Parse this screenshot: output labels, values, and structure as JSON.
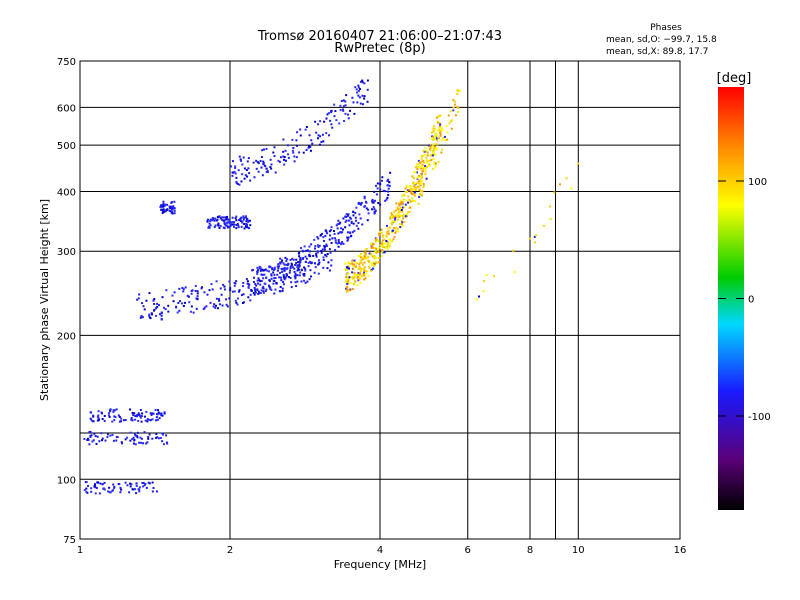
{
  "chart_data": {
    "type": "scatter",
    "title": "Tromsø 20160407 21:06:00–21:07:43",
    "subtitle": "RwPretec (8p)",
    "xlabel": "Frequency [MHz]",
    "ylabel": "Stationary phase Virtual Height [km]",
    "x_scale": "log",
    "y_scale": "log",
    "xlim": [
      1,
      16
    ],
    "ylim": [
      75,
      750
    ],
    "x_ticks": [
      1,
      2,
      4,
      6,
      8,
      10,
      16
    ],
    "x_minor_ticks": [
      9
    ],
    "y_ticks": [
      75,
      100,
      200,
      300,
      400,
      500,
      600,
      750
    ],
    "y_minor_ticks": [
      125
    ],
    "grid": true,
    "stats": {
      "title": "Phases",
      "line_o": "mean, sd,O: −99.7, 15.8",
      "line_x": "mean, sd,X:  89.8, 17.7"
    },
    "colorbar": {
      "label": "[deg]",
      "range": [
        -180,
        180
      ],
      "ticks": [
        -100,
        0,
        100
      ]
    },
    "series": [
      {
        "x_range": [
          1.02,
          1.5
        ],
        "y": 122,
        "phase": -100,
        "count": 70
      },
      {
        "x_range": [
          1.05,
          1.48
        ],
        "y": 136,
        "phase": -100,
        "count": 90
      },
      {
        "x_range": [
          1.0,
          1.45
        ],
        "y": 96,
        "phase": -105,
        "count": 70
      },
      {
        "x_range": [
          1.3,
          3.2
        ],
        "y_range": [
          230,
          290
        ],
        "phase": -100,
        "count": 260
      },
      {
        "x_range": [
          1.45,
          1.55
        ],
        "y": 370,
        "phase": -100,
        "count": 50
      },
      {
        "x_range": [
          1.8,
          2.2
        ],
        "y": 345,
        "phase": -100,
        "count": 110
      },
      {
        "x_range": [
          2.0,
          3.8
        ],
        "y_range": [
          440,
          660
        ],
        "phase": -100,
        "count": 170
      },
      {
        "x_range": [
          2.2,
          4.2
        ],
        "y_range": [
          260,
          420
        ],
        "phase": -100,
        "count": 300
      },
      {
        "x_range": [
          3.4,
          5.3
        ],
        "y_range": [
          265,
          560
        ],
        "phase": 100,
        "count": 480
      },
      {
        "x_range": [
          4.2,
          5.8
        ],
        "y_range": [
          350,
          650
        ],
        "phase": 80,
        "count": 100
      },
      {
        "x_range": [
          6.2,
          10.0
        ],
        "y_range": [
          250,
          460
        ],
        "phase": 60,
        "count": 20
      }
    ]
  }
}
